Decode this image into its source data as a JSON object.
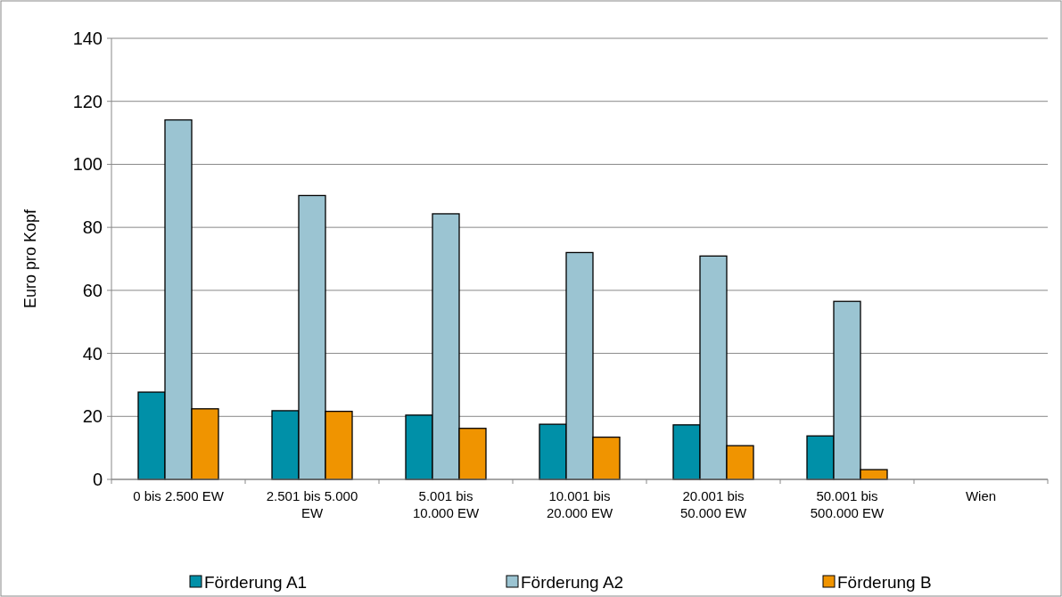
{
  "chart_data": {
    "type": "bar",
    "ylabel": "Euro pro Kopf",
    "categories": [
      "0 bis 2.500 EW",
      "2.501 bis 5.000 EW",
      "5.001 bis 10.000 EW",
      "10.001 bis 20.000 EW",
      "20.001 bis 50.000 EW",
      "50.001 bis 500.000 EW",
      "Wien"
    ],
    "series": [
      {
        "name": "Förderung A1",
        "color": "#0090a8",
        "values": [
          27.7,
          21.8,
          20.4,
          17.5,
          17.3,
          13.8,
          null
        ]
      },
      {
        "name": "Förderung A2",
        "color": "#9bc4d2",
        "values": [
          114.1,
          90.1,
          84.3,
          72.0,
          70.9,
          56.5,
          null
        ]
      },
      {
        "name": "Förderung B",
        "color": "#f09400",
        "values": [
          22.4,
          21.6,
          16.2,
          13.4,
          10.7,
          3.1,
          null
        ]
      }
    ],
    "ylim": [
      0,
      140
    ],
    "yticks": [
      0,
      20,
      40,
      60,
      80,
      100,
      120,
      140
    ],
    "grid": "y",
    "legend": "bottom"
  }
}
